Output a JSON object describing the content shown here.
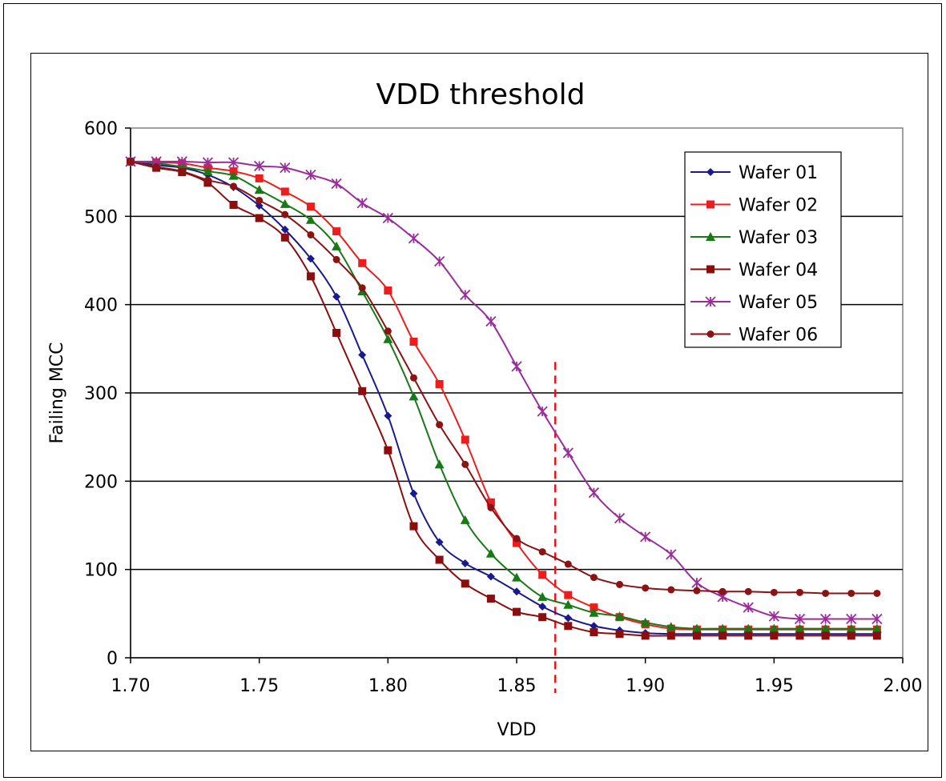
{
  "chart_data": {
    "type": "line",
    "title": "VDD threshold",
    "xlabel": "VDD",
    "ylabel": "Failing MCC",
    "xlim": [
      1.7,
      2.0
    ],
    "ylim": [
      0,
      600
    ],
    "x_ticks": [
      "1.70",
      "1.75",
      "1.80",
      "1.85",
      "1.90",
      "1.95",
      "2.00"
    ],
    "x_tick_values": [
      1.7,
      1.75,
      1.8,
      1.85,
      1.9,
      1.95,
      2.0
    ],
    "y_ticks": [
      "0",
      "100",
      "200",
      "300",
      "400",
      "500",
      "600"
    ],
    "y_tick_values": [
      0,
      100,
      200,
      300,
      400,
      500,
      600
    ],
    "grid": "horizontal",
    "legend_position": "top-right",
    "threshold_line": {
      "x": 1.865,
      "y_range": [
        -40,
        335
      ],
      "color": "#e8141c",
      "style": "dashed"
    },
    "x": [
      1.7,
      1.71,
      1.72,
      1.73,
      1.74,
      1.75,
      1.76,
      1.77,
      1.78,
      1.79,
      1.8,
      1.81,
      1.82,
      1.83,
      1.84,
      1.85,
      1.86,
      1.87,
      1.88,
      1.89,
      1.9,
      1.91,
      1.92,
      1.93,
      1.94,
      1.95,
      1.96,
      1.97,
      1.98,
      1.99
    ],
    "series": [
      {
        "name": "Wafer 01",
        "color": "#1a1a8c",
        "marker": "diamond",
        "values": [
          562,
          558,
          555,
          547,
          533,
          512,
          485,
          452,
          409,
          343,
          274,
          186,
          131,
          107,
          92,
          75,
          58,
          45,
          36,
          31,
          28,
          27,
          27,
          27,
          27,
          27,
          27,
          27,
          27,
          27
        ]
      },
      {
        "name": "Wafer 02",
        "color": "#ee1c1c",
        "marker": "square",
        "values": [
          562,
          561,
          560,
          555,
          551,
          543,
          528,
          511,
          483,
          447,
          416,
          358,
          310,
          247,
          176,
          130,
          94,
          71,
          57,
          46,
          38,
          33,
          32,
          32,
          32,
          32,
          32,
          32,
          32,
          32
        ]
      },
      {
        "name": "Wafer 03",
        "color": "#177a17",
        "marker": "triangle",
        "values": [
          562,
          560,
          556,
          551,
          546,
          530,
          514,
          496,
          466,
          415,
          361,
          296,
          219,
          156,
          118,
          91,
          69,
          60,
          51,
          47,
          40,
          35,
          33,
          33,
          33,
          33,
          33,
          33,
          33,
          33
        ]
      },
      {
        "name": "Wafer 04",
        "color": "#8b0d0d",
        "marker": "square",
        "values": [
          562,
          555,
          550,
          538,
          513,
          498,
          476,
          432,
          368,
          302,
          235,
          149,
          111,
          84,
          67,
          52,
          46,
          36,
          29,
          27,
          25,
          25,
          25,
          25,
          25,
          25,
          25,
          25,
          25,
          25
        ]
      },
      {
        "name": "Wafer 05",
        "color": "#9b2c9b",
        "marker": "star",
        "values": [
          562,
          562,
          562,
          561,
          561,
          557,
          555,
          547,
          537,
          515,
          498,
          475,
          449,
          411,
          381,
          330,
          279,
          232,
          187,
          158,
          137,
          117,
          85,
          69,
          57,
          47,
          44,
          44,
          44,
          44
        ]
      },
      {
        "name": "Wafer 06",
        "color": "#8b1313",
        "marker": "circle",
        "values": [
          562,
          556,
          551,
          541,
          534,
          518,
          502,
          479,
          451,
          419,
          370,
          317,
          264,
          219,
          170,
          135,
          120,
          106,
          91,
          83,
          79,
          77,
          76,
          75,
          75,
          74,
          74,
          73,
          73,
          73
        ]
      }
    ]
  }
}
